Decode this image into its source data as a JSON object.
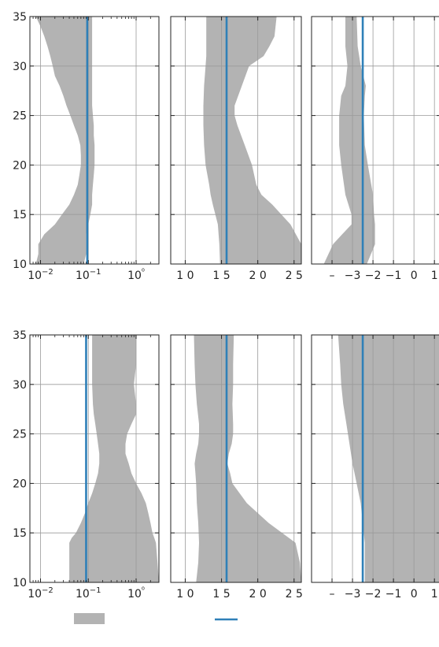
{
  "chart_data": [
    {
      "type": "area",
      "row": 1,
      "x_scale": "log",
      "xlim": [
        0.006,
        3.0
      ],
      "ylim": [
        10,
        35
      ],
      "x_ticks": [
        0.01,
        0.1,
        1
      ],
      "x_tick_labels": [
        "10−2",
        "10−1",
        "10⁰"
      ],
      "y_ticks": [
        10,
        15,
        20,
        25,
        30,
        35
      ],
      "y_tick_labels": [
        "10",
        "15",
        "20",
        "25",
        "30",
        "35"
      ],
      "grid": true,
      "band": {
        "y": [
          10,
          11,
          12,
          13,
          14,
          15,
          16,
          17,
          18,
          19,
          20,
          21,
          22,
          23,
          24,
          25,
          26,
          27,
          28,
          29,
          30,
          31,
          32,
          33,
          34,
          35
        ],
        "lower": [
          0.008,
          0.009,
          0.009,
          0.012,
          0.02,
          0.028,
          0.04,
          0.05,
          0.06,
          0.065,
          0.07,
          0.07,
          0.068,
          0.06,
          0.05,
          0.042,
          0.035,
          0.03,
          0.025,
          0.02,
          0.018,
          0.016,
          0.014,
          0.012,
          0.01,
          0.008
        ],
        "upper": [
          0.08,
          0.09,
          0.09,
          0.09,
          0.1,
          0.11,
          0.12,
          0.12,
          0.125,
          0.13,
          0.135,
          0.135,
          0.135,
          0.13,
          0.13,
          0.125,
          0.12,
          0.12,
          0.12,
          0.12,
          0.12,
          0.12,
          0.12,
          0.12,
          0.12,
          0.12
        ]
      },
      "line": {
        "x": 0.095,
        "color": "#2f80b8"
      }
    },
    {
      "type": "area",
      "row": 1,
      "x_scale": "linear",
      "xlim": [
        8,
        26
      ],
      "ylim": [
        10,
        35
      ],
      "x_ticks": [
        10,
        15,
        20,
        25
      ],
      "x_tick_labels": [
        "1 0",
        "1 5",
        "2 0",
        "2 5"
      ],
      "y_ticks": [
        10,
        15,
        20,
        25,
        30,
        35
      ],
      "grid": true,
      "band": {
        "y": [
          10,
          12,
          14,
          16,
          17,
          18,
          20,
          22,
          24,
          25,
          26,
          28,
          30,
          31,
          32,
          33,
          35
        ],
        "lower": [
          14.8,
          14.7,
          14.5,
          13.8,
          13.5,
          13.3,
          12.8,
          12.6,
          12.5,
          12.5,
          12.5,
          12.6,
          12.8,
          12.9,
          12.9,
          12.9,
          12.9
        ],
        "upper": [
          26.0,
          26.0,
          24.5,
          22.0,
          20.5,
          19.8,
          19.2,
          18.2,
          17.2,
          16.8,
          16.8,
          17.8,
          18.8,
          20.8,
          21.6,
          22.3,
          22.6
        ]
      },
      "line": {
        "x": 15.7,
        "color": "#2f80b8"
      }
    },
    {
      "type": "area",
      "row": 1,
      "x_scale": "linear",
      "xlim": [
        -5.0,
        1.3
      ],
      "ylim": [
        10,
        35
      ],
      "x_ticks": [
        -4,
        -3,
        -2,
        -1,
        0,
        1
      ],
      "x_tick_labels": [
        "–",
        "−3",
        "−2",
        "−1",
        "0",
        "1"
      ],
      "y_ticks": [
        10,
        15,
        20,
        25,
        30,
        35
      ],
      "grid": true,
      "band": {
        "y": [
          10,
          12,
          13,
          14,
          15,
          17,
          20,
          22,
          25,
          27,
          28,
          30,
          32,
          35
        ],
        "lower": [
          -4.4,
          -3.95,
          -3.5,
          -3.05,
          -3.05,
          -3.35,
          -3.55,
          -3.65,
          -3.65,
          -3.55,
          -3.35,
          -3.25,
          -3.35,
          -3.35
        ],
        "upper": [
          -2.3,
          -1.9,
          -1.9,
          -1.9,
          -1.95,
          -2.0,
          -2.25,
          -2.4,
          -2.45,
          -2.4,
          -2.35,
          -2.6,
          -2.75,
          -2.8
        ]
      },
      "line": {
        "x": -2.5,
        "color": "#2f80b8"
      }
    },
    {
      "type": "area",
      "row": 2,
      "x_scale": "log",
      "xlim": [
        0.006,
        3.0
      ],
      "ylim": [
        10,
        35
      ],
      "x_ticks": [
        0.01,
        0.1,
        1
      ],
      "x_tick_labels": [
        "10−2",
        "10−1",
        "10⁰"
      ],
      "y_ticks": [
        10,
        15,
        20,
        25,
        30,
        35
      ],
      "y_tick_labels": [
        "10",
        "15",
        "20",
        "25",
        "30",
        "35"
      ],
      "grid": true,
      "band": {
        "y": [
          10,
          12,
          14,
          14.5,
          15,
          16,
          17,
          18,
          19,
          20,
          21,
          22,
          23,
          24,
          25,
          26,
          27,
          28,
          30,
          32,
          35
        ],
        "lower": [
          0.04,
          0.04,
          0.04,
          0.045,
          0.055,
          0.07,
          0.085,
          0.1,
          0.12,
          0.14,
          0.16,
          0.17,
          0.17,
          0.16,
          0.15,
          0.14,
          0.13,
          0.125,
          0.12,
          0.12,
          0.12
        ],
        "upper": [
          3.0,
          2.8,
          2.6,
          2.4,
          2.2,
          2.0,
          1.8,
          1.6,
          1.3,
          1.0,
          0.8,
          0.7,
          0.6,
          0.6,
          0.65,
          0.8,
          1.0,
          1.0,
          0.9,
          1.0,
          1.0
        ]
      },
      "line": {
        "x": 0.09,
        "color": "#2f80b8"
      }
    },
    {
      "type": "area",
      "row": 2,
      "x_scale": "linear",
      "xlim": [
        8,
        26
      ],
      "ylim": [
        10,
        35
      ],
      "x_ticks": [
        10,
        15,
        20,
        25
      ],
      "x_tick_labels": [
        "1 0",
        "1 5",
        "2 0",
        "2 5"
      ],
      "y_ticks": [
        10,
        15,
        20,
        25,
        30,
        35
      ],
      "grid": true,
      "band": {
        "y": [
          10,
          12,
          14,
          16,
          18,
          20,
          21,
          22,
          23,
          24,
          25,
          26,
          28,
          30,
          32,
          35
        ],
        "lower": [
          11.5,
          11.8,
          11.9,
          11.8,
          11.6,
          11.5,
          11.4,
          11.3,
          11.5,
          11.8,
          11.9,
          11.9,
          11.6,
          11.4,
          11.3,
          11.2
        ],
        "upper": [
          26.0,
          25.8,
          25.2,
          21.5,
          18.5,
          16.5,
          16.2,
          15.8,
          16.0,
          16.4,
          16.6,
          16.6,
          16.5,
          16.6,
          16.6,
          16.7
        ]
      },
      "line": {
        "x": 15.7,
        "color": "#2f80b8"
      }
    },
    {
      "type": "area",
      "row": 2,
      "x_scale": "linear",
      "xlim": [
        -5.0,
        1.3
      ],
      "ylim": [
        10,
        35
      ],
      "x_ticks": [
        -4,
        -3,
        -2,
        -1,
        0,
        1
      ],
      "x_tick_labels": [
        "–",
        "−3",
        "−2",
        "−1",
        "0",
        "1"
      ],
      "y_ticks": [
        10,
        15,
        20,
        25,
        30,
        35
      ],
      "grid": true,
      "band": {
        "y": [
          10,
          12,
          14,
          16,
          18,
          20,
          22,
          24,
          26,
          28,
          30,
          32,
          35
        ],
        "lower": [
          -2.4,
          -2.4,
          -2.4,
          -2.5,
          -2.6,
          -2.8,
          -3.0,
          -3.15,
          -3.3,
          -3.45,
          -3.55,
          -3.6,
          -3.7
        ],
        "upper": [
          1.3,
          1.3,
          1.3,
          1.3,
          1.3,
          1.3,
          1.3,
          1.3,
          1.3,
          1.3,
          1.3,
          1.3,
          1.3
        ]
      },
      "line": {
        "x": -2.5,
        "color": "#2f80b8"
      }
    }
  ],
  "legend": {
    "placement": "bottom",
    "entries": [
      {
        "kind": "band",
        "label": "",
        "color": "#b3b3b3"
      },
      {
        "kind": "line",
        "label": "",
        "color": "#2f80b8"
      }
    ]
  },
  "colors": {
    "band": "#b3b3b3",
    "line": "#2f80b8",
    "grid": "#9a9a9a",
    "axes": "#222222"
  }
}
